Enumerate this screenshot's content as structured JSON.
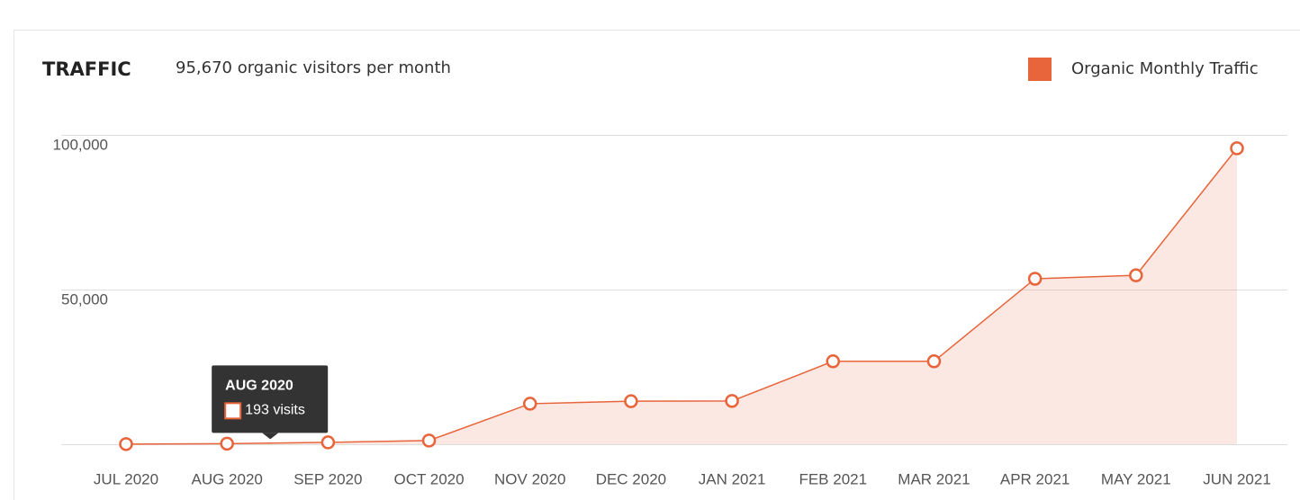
{
  "chart_data": {
    "type": "line",
    "title": "TRAFFIC",
    "subtitle": "95,670 organic visitors per month",
    "categories": [
      "JUL 2020",
      "AUG 2020",
      "SEP 2020",
      "OCT 2020",
      "NOV 2020",
      "DEC 2020",
      "JAN 2021",
      "FEB 2021",
      "MAR 2021",
      "APR 2021",
      "MAY 2021",
      "JUN 2021"
    ],
    "series": [
      {
        "name": "Organic Monthly Traffic",
        "color": "#e8643a",
        "values": [
          50,
          193,
          600,
          1200,
          13100,
          13900,
          14000,
          26800,
          26800,
          53500,
          54600,
          95670
        ],
        "value_labels": [
          null,
          "193 visits",
          null,
          null,
          null,
          null,
          null,
          null,
          null,
          null,
          null,
          null
        ]
      }
    ],
    "ylim": [
      0,
      100000
    ],
    "yticks": [
      {
        "value": 50000,
        "label": "50,000"
      },
      {
        "value": 100000,
        "label": "100,000"
      }
    ],
    "grid": true,
    "legend": "top-right"
  }
}
